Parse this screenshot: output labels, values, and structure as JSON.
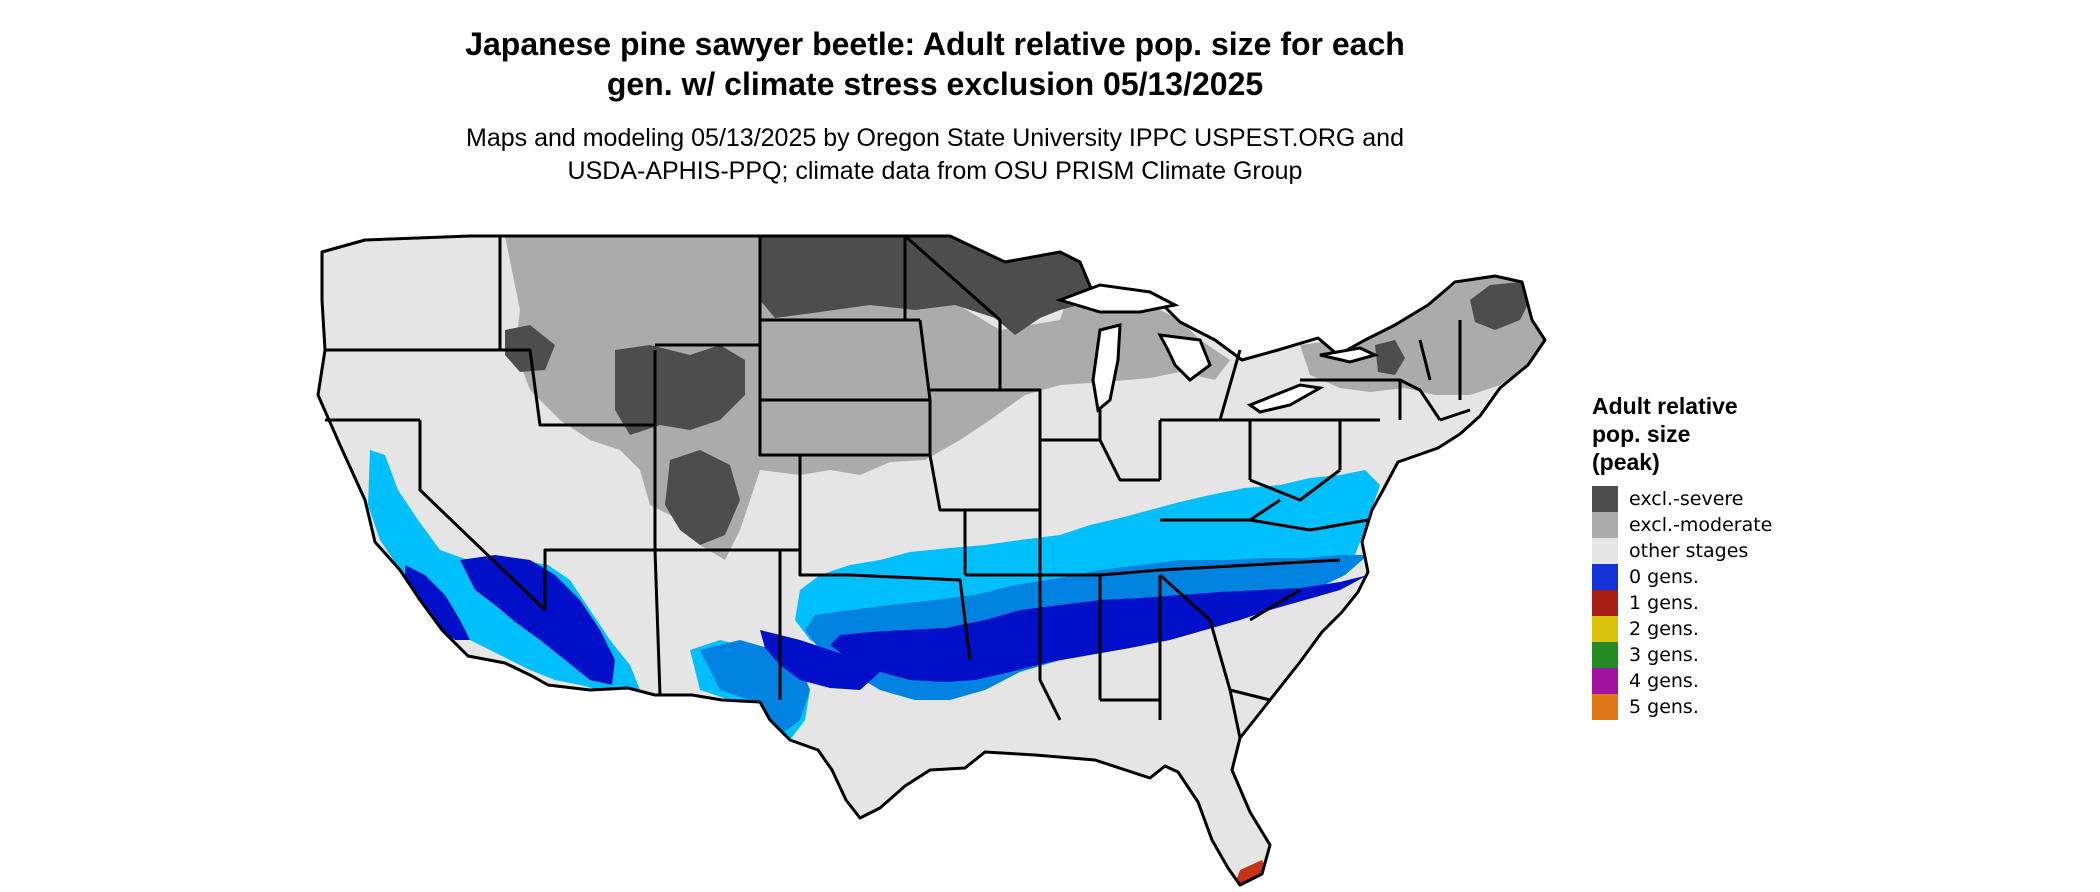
{
  "title_lines": [
    "Japanese pine sawyer beetle: Adult relative pop. size for each",
    "gen. w/ climate stress exclusion 05/13/2025"
  ],
  "subtitle_lines": [
    "Maps and modeling 05/13/2025 by Oregon State University IPPC USPEST.ORG and",
    "USDA-APHIS-PPQ; climate data from OSU PRISM Climate Group"
  ],
  "legend": {
    "title_lines": [
      "Adult relative",
      "pop. size",
      "(peak)"
    ],
    "items": [
      {
        "label": "excl.-severe",
        "color": "#4d4d4d"
      },
      {
        "label": "excl.-moderate",
        "color": "#ababab"
      },
      {
        "label": "other stages",
        "color": "#e5e5e5"
      },
      {
        "label": "0 gens.",
        "color": "#1534d8"
      },
      {
        "label": "1 gens.",
        "color": "#a81e16"
      },
      {
        "label": "2 gens.",
        "color": "#d9c30a"
      },
      {
        "label": "3 gens.",
        "color": "#248a24"
      },
      {
        "label": "4 gens.",
        "color": "#a012a0"
      },
      {
        "label": "5 gens.",
        "color": "#e07718"
      }
    ]
  },
  "map_colors": {
    "background": "#e5e5e5",
    "excl_severe": "#4d4d4d",
    "excl_moderate": "#ababab",
    "light_blue": "#00bfff",
    "mid_blue": "#0083e0",
    "dark_blue": "#0010c8",
    "one_gen_red": "#c83218",
    "state_lines": "#000000"
  }
}
